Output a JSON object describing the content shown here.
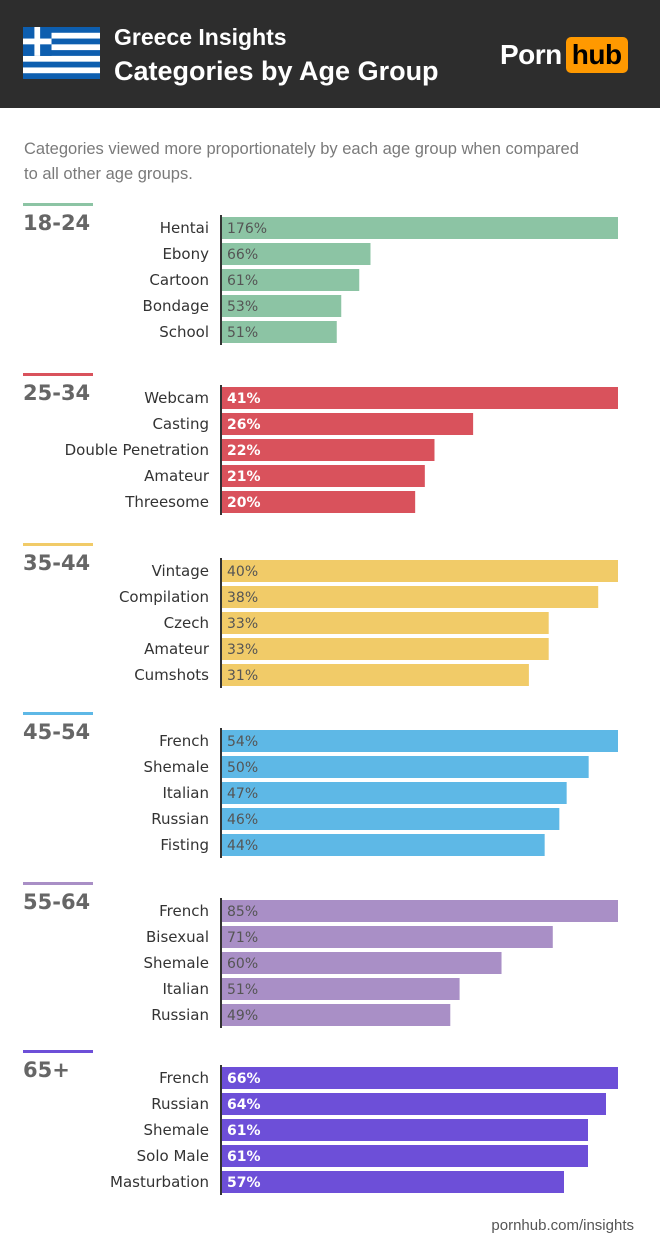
{
  "header": {
    "title_line1": "Greece Insights",
    "title_line2": "Categories by Age Group",
    "logo_part1": "Porn",
    "logo_part2": "hub",
    "logo_accent": "#ff9900",
    "background": "#2d2d2d"
  },
  "subtitle": "Categories viewed more proportionately by each age group when compared to all other age groups.",
  "footer": "pornhub.com/insights",
  "chart_data": {
    "type": "bar",
    "orientation": "horizontal",
    "value_suffix": "%",
    "groups": [
      {
        "name": "18-24",
        "color": "#8cc4a4",
        "value_text_color": "#555555",
        "categories": [
          "Hentai",
          "Ebony",
          "Cartoon",
          "Bondage",
          "School"
        ],
        "values": [
          176,
          66,
          61,
          53,
          51
        ]
      },
      {
        "name": "25-34",
        "color": "#d9525c",
        "value_text_color": "#ffffff",
        "categories": [
          "Webcam",
          "Casting",
          "Double Penetration",
          "Amateur",
          "Threesome"
        ],
        "values": [
          41,
          26,
          22,
          21,
          20
        ]
      },
      {
        "name": "35-44",
        "color": "#f1cb68",
        "value_text_color": "#555555",
        "categories": [
          "Vintage",
          "Compilation",
          "Czech",
          "Amateur",
          "Cumshots"
        ],
        "values": [
          40,
          38,
          33,
          33,
          31
        ]
      },
      {
        "name": "45-54",
        "color": "#5eb8e6",
        "value_text_color": "#555555",
        "categories": [
          "French",
          "Shemale",
          "Italian",
          "Russian",
          "Fisting"
        ],
        "values": [
          54,
          50,
          47,
          46,
          44
        ]
      },
      {
        "name": "55-64",
        "color": "#a98fc6",
        "value_text_color": "#555555",
        "categories": [
          "French",
          "Bisexual",
          "Shemale",
          "Italian",
          "Russian"
        ],
        "values": [
          85,
          71,
          60,
          51,
          49
        ]
      },
      {
        "name": "65+",
        "color": "#6d4fd8",
        "value_text_color": "#ffffff",
        "categories": [
          "French",
          "Russian",
          "Shemale",
          "Solo Male",
          "Masturbation"
        ],
        "values": [
          66,
          64,
          61,
          61,
          57
        ]
      }
    ]
  }
}
